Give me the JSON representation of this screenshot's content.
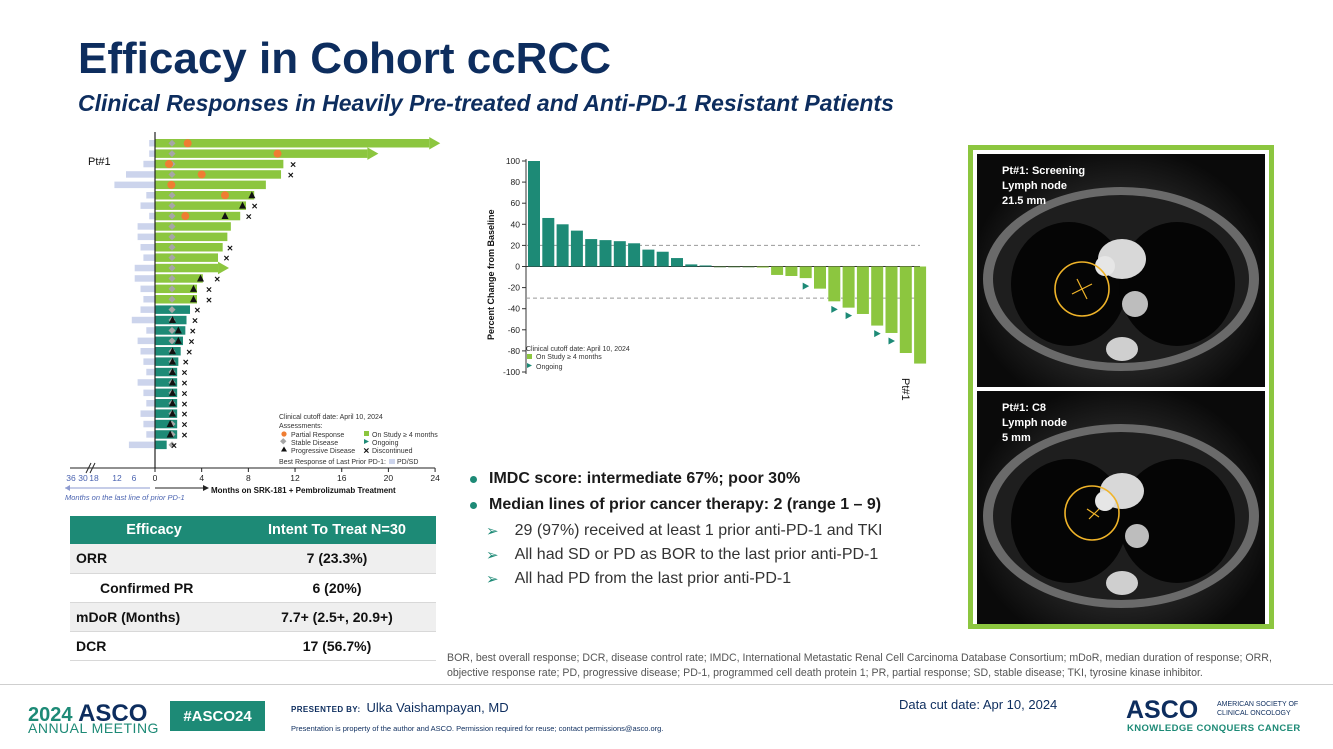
{
  "header": {
    "title": "Efficacy in Cohort ccRCC",
    "subtitle": "Clinical Responses in Heavily Pre-treated and Anti-PD-1 Resistant Patients"
  },
  "colors": {
    "navy": "#0d2d5e",
    "teal": "#1d8a76",
    "green": "#8cc63f",
    "orange": "#ef7d32",
    "grey_marker": "#a6a6a6",
    "prior_bar": "#ccd4ec"
  },
  "chart_data": [
    {
      "type": "swimmer",
      "xlabel": "Months on SRK-181 + Pembrolizumab Treatment",
      "left_axis_label": "Months on the last line of prior PD-1",
      "x_ticks": [
        0,
        4,
        8,
        12,
        16,
        20,
        24
      ],
      "prior_ticks": [
        "36",
        "30",
        "18",
        "12",
        "6"
      ],
      "xlim": [
        0,
        24
      ],
      "patient_label": "Pt#1",
      "legend": {
        "cutoff": "Clinical cutoff date: April 10, 2024",
        "assessments": "Assessments:",
        "pr": "Partial Response",
        "sd": "Stable Disease",
        "pd": "Progressive Disease",
        "on_study": "On Study ≥ 4 months",
        "ongoing": "Ongoing",
        "discontinued": "Discontinued",
        "prior_label": "Best Response of Last Prior PD-1:",
        "prior_value": "PD/SD"
      },
      "patients": [
        {
          "dur": 23.5,
          "prior": 4,
          "on": true,
          "ongoing": true,
          "pr": 2.8
        },
        {
          "dur": 18.2,
          "prior": 4,
          "on": true,
          "ongoing": true,
          "pr": 10.5
        },
        {
          "dur": 11.0,
          "prior": 8,
          "on": true,
          "x": 11.2,
          "pr": 1.2
        },
        {
          "dur": 10.8,
          "prior": 20,
          "on": true,
          "x": 11.0,
          "pr": 4.0
        },
        {
          "dur": 9.5,
          "prior": 28,
          "on": true,
          "pr": 1.4
        },
        {
          "dur": 8.5,
          "prior": 6,
          "on": true,
          "pd": 8.3,
          "pr": 6.0
        },
        {
          "dur": 7.8,
          "prior": 10,
          "on": true,
          "pd": 7.5,
          "x": 7.9
        },
        {
          "dur": 7.3,
          "prior": 4,
          "on": true,
          "pd": 6.0,
          "x": 7.4,
          "pr": 2.6
        },
        {
          "dur": 6.5,
          "prior": 12,
          "on": true
        },
        {
          "dur": 6.2,
          "prior": 12,
          "on": true
        },
        {
          "dur": 5.8,
          "prior": 10,
          "on": true,
          "x": 5.8
        },
        {
          "dur": 5.4,
          "prior": 8,
          "on": true,
          "x": 5.5
        },
        {
          "dur": 5.4,
          "prior": 14,
          "on": true,
          "ongoing": true
        },
        {
          "dur": 4.1,
          "prior": 14,
          "on": true,
          "pd": 3.9,
          "x": 4.7
        },
        {
          "dur": 3.6,
          "prior": 10,
          "on": true,
          "pd": 3.3,
          "x": 4.0
        },
        {
          "dur": 3.6,
          "prior": 8,
          "on": true,
          "pd": 3.3,
          "x": 4.0
        },
        {
          "dur": 3.0,
          "prior": 10,
          "on": false,
          "x": 3.0
        },
        {
          "dur": 2.7,
          "prior": 16,
          "on": false,
          "pd": 1.5,
          "x": 2.8
        },
        {
          "dur": 2.6,
          "prior": 6,
          "on": false,
          "pd": 2.0,
          "x": 2.6
        },
        {
          "dur": 2.4,
          "prior": 12,
          "on": false,
          "pd": 2.0,
          "x": 2.5
        },
        {
          "dur": 2.2,
          "prior": 10,
          "on": false,
          "pd": 1.5,
          "x": 2.3
        },
        {
          "dur": 2.0,
          "prior": 8,
          "on": false,
          "pd": 1.5,
          "x": 2.0
        },
        {
          "dur": 1.9,
          "prior": 6,
          "on": false,
          "pd": 1.5,
          "x": 1.9
        },
        {
          "dur": 1.9,
          "prior": 12,
          "on": false,
          "pd": 1.5,
          "x": 1.9
        },
        {
          "dur": 1.9,
          "prior": 8,
          "on": false,
          "pd": 1.5,
          "x": 1.9
        },
        {
          "dur": 1.9,
          "prior": 6,
          "on": false,
          "pd": 1.5,
          "x": 1.9
        },
        {
          "dur": 1.9,
          "prior": 10,
          "on": false,
          "pd": 1.5,
          "x": 1.9
        },
        {
          "dur": 1.9,
          "prior": 8,
          "on": false,
          "pd": 1.3,
          "x": 1.9
        },
        {
          "dur": 1.9,
          "prior": 6,
          "on": false,
          "pd": 1.3,
          "x": 1.9
        },
        {
          "dur": 1.0,
          "prior": 18,
          "on": false,
          "x": 1.0
        }
      ]
    },
    {
      "type": "bar",
      "title": "",
      "ylabel": "Percent Change from Baseline",
      "ylim": [
        -100,
        100
      ],
      "y_ticks": [
        100,
        80,
        60,
        40,
        20,
        0,
        -20,
        -40,
        -60,
        -80,
        -100
      ],
      "ref_lines": [
        20,
        -30
      ],
      "values": [
        100,
        46,
        40,
        34,
        26,
        25,
        24,
        22,
        16,
        14,
        8,
        2,
        1,
        0,
        0,
        0,
        -1,
        -8,
        -9,
        -11,
        -21,
        -33,
        -39,
        -45,
        -56,
        -63,
        -82,
        -92
      ],
      "ongoing_index": [
        19,
        21,
        22,
        24,
        25
      ],
      "last_bar_label": "Pt#1",
      "legend": {
        "cutoff": "Clinical cutoff date: April 10, 2024",
        "on_study": "On Study ≥ 4 months",
        "ongoing": "Ongoing"
      }
    }
  ],
  "efficacy_table": {
    "headers": [
      "Efficacy",
      "Intent To Treat N=30"
    ],
    "rows": [
      {
        "metric": "ORR",
        "value": "7 (23.3%)"
      },
      {
        "metric": "Confirmed PR",
        "value": "6 (20%)"
      },
      {
        "metric": "mDoR (Months)",
        "value": "7.7+ (2.5+, 20.9+)"
      },
      {
        "metric": "DCR",
        "value": "17 (56.7%)"
      }
    ]
  },
  "bullets": [
    "IMDC score: intermediate 67%; poor 30%",
    "Median lines of prior cancer therapy: 2 (range 1 – 9)"
  ],
  "sub_bullets": [
    "29 (97%) received at least 1 prior anti-PD-1 and TKI",
    "All had SD or PD as BOR to the last prior anti-PD-1",
    "All had PD from the last prior anti-PD-1"
  ],
  "ct_scans": {
    "screening_label": "Pt#1: Screening\nLymph node\n21.5 mm",
    "c8_label": "Pt#1: C8\nLymph node\n5 mm"
  },
  "footnote": "BOR, best overall response; DCR, disease control rate; IMDC, International Metastatic Renal Cell Carcinoma Database Consortium; mDoR, median duration of response; ORR, objective response rate; PD, progressive disease; PD-1, programmed cell death protein 1; PR, partial response; SD, stable disease; TKI, tyrosine kinase inhibitor.",
  "footer": {
    "year": "2024",
    "asco": "ASCO",
    "meeting": "ANNUAL MEETING",
    "hashtag": "#ASCO24",
    "presented_by": "PRESENTED BY:",
    "presenter": "Ulka Vaishampayan, MD",
    "permission": "Presentation is property of the author and ASCO. Permission required for reuse; contact permissions@asco.org.",
    "data_cut": "Data cut date: Apr 10, 2024",
    "logo": "ASCO",
    "society": "AMERICAN SOCIETY OF\nCLINICAL ONCOLOGY",
    "tagline": "KNOWLEDGE CONQUERS CANCER"
  }
}
